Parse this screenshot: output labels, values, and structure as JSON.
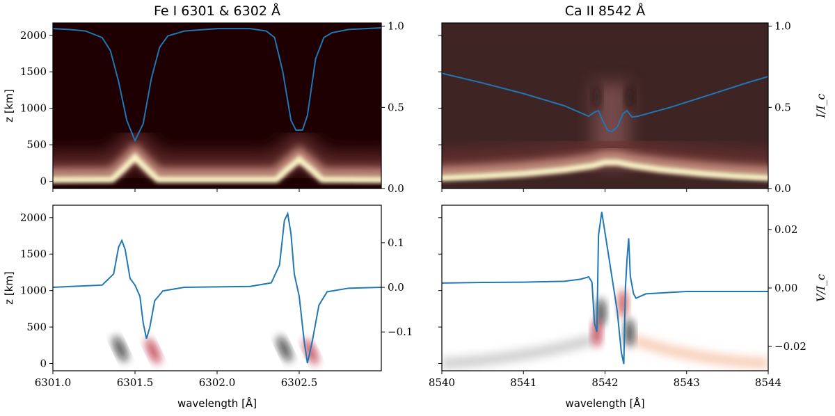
{
  "chart_data": [
    {
      "id": "fe-intensity",
      "type": "heatmap+line",
      "title": "Fe I 6301 & 6302 Å",
      "ylabel": "z [km]",
      "ylabel_right": "",
      "xlabel": "",
      "xlim": [
        6301.0,
        6303.0
      ],
      "ylim": [
        -100,
        2170
      ],
      "ylim_right": [
        0,
        1.02
      ],
      "xticks": [
        6301.0,
        6301.5,
        6302.0,
        6302.5
      ],
      "xtick_labels": [],
      "yticks": [
        0,
        500,
        1000,
        1500,
        2000
      ],
      "ytick_labels": [
        "0",
        "500",
        "1000",
        "1500",
        "2000"
      ],
      "yticks_right": [
        0.0,
        0.5,
        1.0
      ],
      "ytick_labels_right": [
        "0.0",
        "0.5",
        "1.0"
      ],
      "heatmap_colormap": "pink-magma",
      "line_color": "#1f77b4",
      "line": {
        "x": [
          6301.0,
          6301.1,
          6301.2,
          6301.3,
          6301.35,
          6301.4,
          6301.45,
          6301.5,
          6301.55,
          6301.6,
          6301.65,
          6301.7,
          6301.8,
          6302.0,
          6302.2,
          6302.3,
          6302.35,
          6302.4,
          6302.45,
          6302.48,
          6302.52,
          6302.55,
          6302.6,
          6302.65,
          6302.7,
          6302.8,
          6303.0
        ],
        "y": [
          0.985,
          0.98,
          0.97,
          0.93,
          0.85,
          0.66,
          0.42,
          0.295,
          0.4,
          0.68,
          0.87,
          0.94,
          0.97,
          0.985,
          0.985,
          0.97,
          0.93,
          0.72,
          0.42,
          0.36,
          0.36,
          0.45,
          0.8,
          0.93,
          0.96,
          0.98,
          0.99
        ]
      }
    },
    {
      "id": "ca-intensity",
      "type": "heatmap+line",
      "title": "Ca II 8542 Å",
      "ylabel": "",
      "ylabel_right": "I/I_c",
      "xlabel": "",
      "xlim": [
        8540,
        8544
      ],
      "ylim": [
        -100,
        2170
      ],
      "ylim_right": [
        0,
        1.02
      ],
      "xticks": [
        8540,
        8541,
        8542,
        8543,
        8544
      ],
      "xtick_labels": [],
      "yticks": [
        0,
        500,
        1000,
        1500,
        2000
      ],
      "ytick_labels": [],
      "yticks_right": [
        0.0,
        0.5,
        1.0
      ],
      "ytick_labels_right": [
        "0.0",
        "0.5",
        "1.0"
      ],
      "heatmap_colormap": "pink-magma",
      "line_color": "#1f77b4",
      "line": {
        "x": [
          8540,
          8540.5,
          8541,
          8541.5,
          8541.8,
          8541.87,
          8541.92,
          8541.97,
          8542.03,
          8542.08,
          8542.15,
          8542.22,
          8542.27,
          8542.33,
          8542.4,
          8542.8,
          8543.3,
          8543.7,
          8544
        ],
        "y": [
          0.71,
          0.65,
          0.585,
          0.51,
          0.445,
          0.47,
          0.48,
          0.42,
          0.36,
          0.35,
          0.38,
          0.46,
          0.48,
          0.44,
          0.445,
          0.5,
          0.58,
          0.645,
          0.69
        ]
      }
    },
    {
      "id": "fe-stokes-v",
      "type": "heatmap+line",
      "title": "",
      "ylabel": "z [km]",
      "ylabel_right": "",
      "xlabel": "wavelength [Å]",
      "xlim": [
        6301.0,
        6303.0
      ],
      "ylim": [
        -100,
        2170
      ],
      "ylim_right": [
        -0.187,
        0.184
      ],
      "xticks": [
        6301.0,
        6301.5,
        6302.0,
        6302.5
      ],
      "xtick_labels": [
        "6301.0",
        "6301.5",
        "6302.0",
        "6302.5"
      ],
      "yticks": [
        0,
        500,
        1000,
        1500,
        2000
      ],
      "ytick_labels": [
        "0",
        "500",
        "1000",
        "1500",
        "2000"
      ],
      "yticks_right": [
        -0.1,
        0.0,
        0.1
      ],
      "ytick_labels_right": [
        "−0.1",
        "0.0",
        "0.1"
      ],
      "heatmap_colormap": "diverging gray-red",
      "line_color": "#1f77b4",
      "line": {
        "x": [
          6301.0,
          6301.3,
          6301.37,
          6301.4,
          6301.42,
          6301.44,
          6301.47,
          6301.5,
          6301.53,
          6301.55,
          6301.57,
          6301.59,
          6301.62,
          6301.67,
          6301.8,
          6302.2,
          6302.33,
          6302.38,
          6302.41,
          6302.43,
          6302.45,
          6302.47,
          6302.5,
          6302.53,
          6302.55,
          6302.58,
          6302.62,
          6302.67,
          6302.8,
          6303.0
        ],
        "y": [
          0,
          0.005,
          0.03,
          0.09,
          0.105,
          0.085,
          0.02,
          0.005,
          -0.02,
          -0.08,
          -0.115,
          -0.09,
          -0.03,
          -0.008,
          0,
          0.002,
          0.01,
          0.05,
          0.15,
          0.165,
          0.12,
          0.03,
          -0.02,
          -0.12,
          -0.17,
          -0.12,
          -0.04,
          -0.01,
          -0.002,
          0
        ]
      }
    },
    {
      "id": "ca-stokes-v",
      "type": "heatmap+line",
      "title": "",
      "ylabel": "",
      "ylabel_right": "V/I_c",
      "xlabel": "wavelength [Å]",
      "xlim": [
        8540,
        8544
      ],
      "ylim": [
        -100,
        2170
      ],
      "ylim_right": [
        -0.0283,
        0.0283
      ],
      "xticks": [
        8540,
        8541,
        8542,
        8543,
        8544
      ],
      "xtick_labels": [
        "8540",
        "8541",
        "8542",
        "8543",
        "8544"
      ],
      "yticks": [
        0,
        500,
        1000,
        1500,
        2000
      ],
      "ytick_labels": [],
      "yticks_right": [
        -0.02,
        0.0,
        0.02
      ],
      "ytick_labels_right": [
        "−0.02",
        "0.00",
        "0.02"
      ],
      "heatmap_colormap": "diverging gray-red",
      "line_color": "#1f77b4",
      "line": {
        "x": [
          8540,
          8540.5,
          8541,
          8541.5,
          8541.7,
          8541.8,
          8541.84,
          8541.87,
          8541.9,
          8541.92,
          8541.94,
          8541.96,
          8542.05,
          8542.15,
          8542.2,
          8542.23,
          8542.25,
          8542.27,
          8542.29,
          8542.31,
          8542.35,
          8542.38,
          8542.5,
          8543,
          8543.5,
          8544
        ],
        "y": [
          0.0017,
          0.0019,
          0.002,
          0.0023,
          0.003,
          0.0038,
          0.002,
          -0.012,
          -0.015,
          0.018,
          0.022,
          0.026,
          0.01,
          -0.008,
          -0.022,
          -0.026,
          0.0,
          0.01,
          0.017,
          0.004,
          -0.002,
          -0.0035,
          -0.002,
          -0.0012,
          -0.0012,
          -0.0012
        ]
      }
    }
  ]
}
